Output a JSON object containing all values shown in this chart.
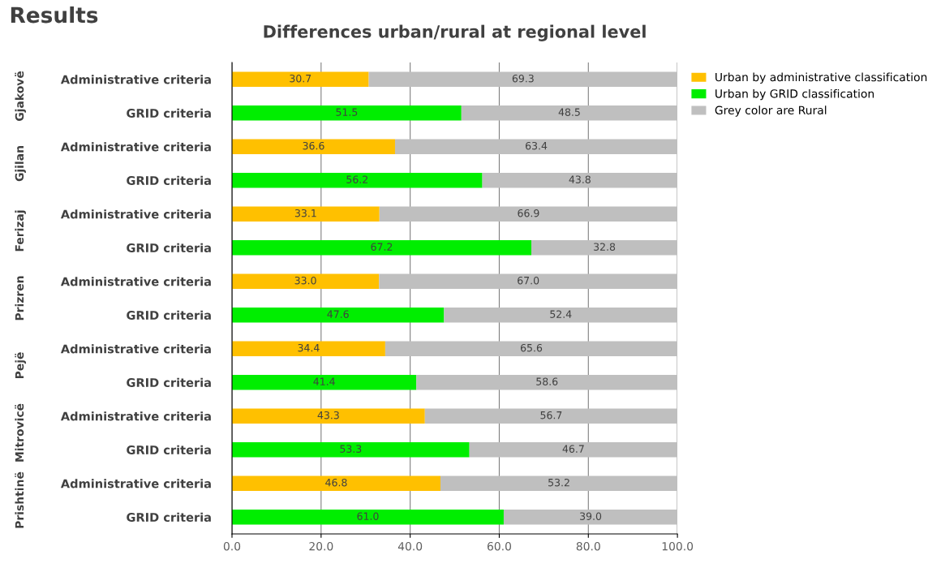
{
  "chart_data": {
    "type": "bar",
    "orientation": "horizontal",
    "stacked": true,
    "title": "Differences urban/rural at regional level",
    "annotations": [
      "Results",
      "Gjakovë",
      "Gjilan",
      "Ferizaj",
      "Prizren",
      "Pejë",
      "Mitrovicë",
      "Prishtinë"
    ],
    "categories": [
      "Administrative criteria",
      "GRID criteria",
      "Administrative criteria",
      "GRID criteria",
      "Administrative criteria",
      "GRID criteria",
      "Administrative criteria",
      "GRID criteria",
      "Administrative criteria",
      "GRID criteria",
      "Administrative criteria",
      "GRID criteria",
      "Administrative criteria",
      "GRID criteria"
    ],
    "series": [
      {
        "name": "Urban by administrative classification",
        "color": "#ffc000",
        "values": [
          30.7,
          null,
          36.6,
          null,
          33.1,
          null,
          33.0,
          null,
          34.4,
          null,
          43.3,
          null,
          46.8,
          null
        ],
        "value_labels": [
          "30.7",
          null,
          "36.6",
          null,
          "33.1",
          null,
          "33.0",
          null,
          "34.4",
          null,
          "43.3",
          null,
          "46.8",
          null
        ]
      },
      {
        "name": "Urban by GRID classification",
        "color": "#00ee00",
        "values": [
          null,
          51.5,
          null,
          56.2,
          null,
          67.2,
          null,
          47.6,
          null,
          41.4,
          null,
          53.3,
          null,
          61.0
        ],
        "value_labels": [
          null,
          "51.5",
          null,
          "56.2",
          null,
          "67.2",
          null,
          "47.6",
          null,
          "41.4",
          null,
          "53.3",
          null,
          "61.0"
        ]
      },
      {
        "name": "Grey color are Rural",
        "color": "#bfbfbf",
        "values": [
          69.3,
          48.5,
          63.4,
          43.8,
          66.9,
          32.8,
          67.0,
          52.4,
          65.6,
          58.6,
          56.7,
          46.7,
          53.2,
          39.0
        ],
        "value_labels": [
          "69.3",
          "48.5",
          "63.4",
          "43.8",
          "66.9",
          "32.8",
          "67.0",
          "52.4",
          "65.6",
          "58.6",
          "56.7",
          "46.7",
          "53.2",
          "39.0"
        ]
      }
    ],
    "xlim": [
      0,
      100
    ],
    "xticks": [
      {
        "value": 0,
        "label": "0.0"
      },
      {
        "value": 20,
        "label": "20.0"
      },
      {
        "value": 40,
        "label": "40.0"
      },
      {
        "value": 60,
        "label": "60.0"
      },
      {
        "value": 80,
        "label": "80.0"
      },
      {
        "value": 100,
        "label": "100.0"
      }
    ],
    "grid": "x",
    "legend": "top right"
  }
}
